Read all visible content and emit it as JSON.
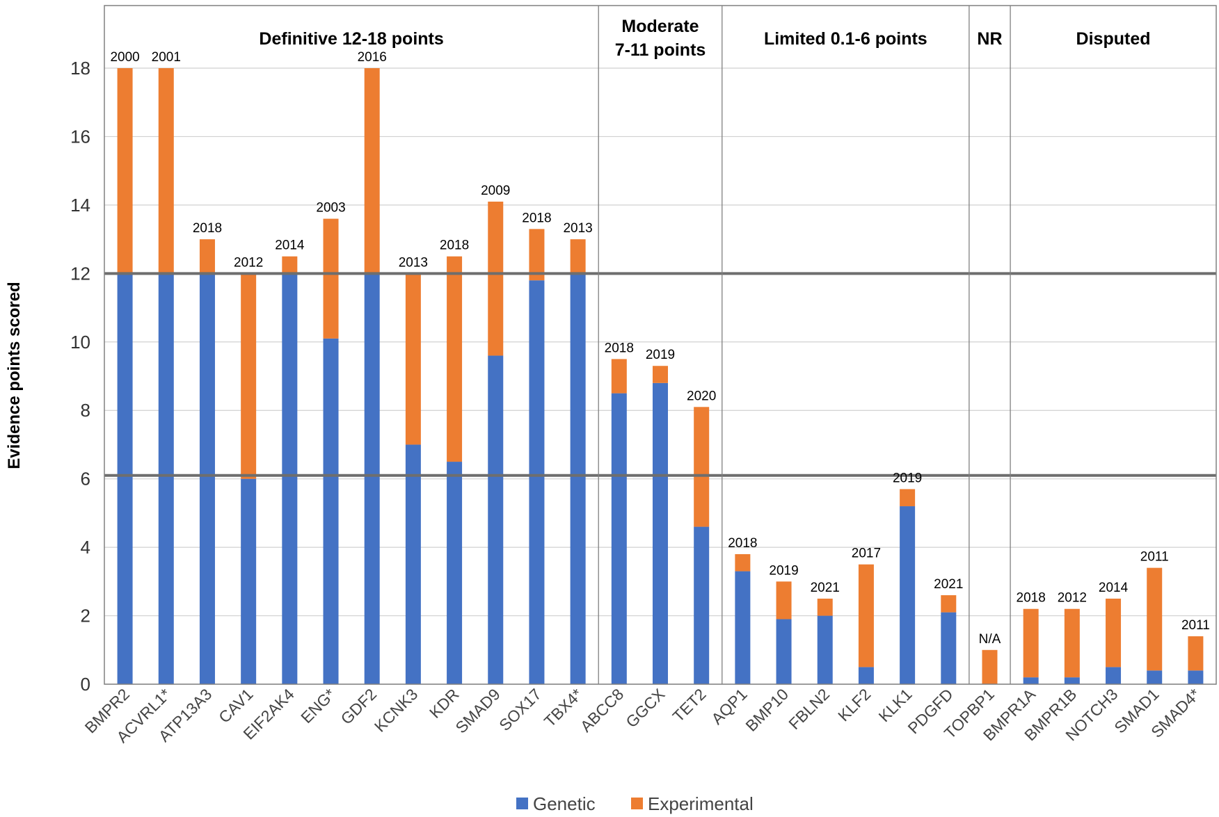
{
  "chart_data": {
    "type": "bar",
    "stacked": true,
    "ylabel": "Evidence points scored",
    "xlabel": "",
    "title": "",
    "ylim": [
      0,
      19
    ],
    "yticks": [
      0,
      2,
      4,
      6,
      8,
      10,
      12,
      14,
      16,
      18
    ],
    "categories": [
      "BMPR2",
      "ACVRL1*",
      "ATP13A3",
      "CAV1",
      "EIF2AK4",
      "ENG*",
      "GDF2",
      "KCNK3",
      "KDR",
      "SMAD9",
      "SOX17",
      "TBX4*",
      "ABCC8",
      "GGCX",
      "TET2",
      "AQP1",
      "BMP10",
      "FBLN2",
      "KLF2",
      "KLK1",
      "PDGFD",
      "TOPBP1",
      "BMPR1A",
      "BMPR1B",
      "NOTCH3",
      "SMAD1",
      "SMAD4*"
    ],
    "series": [
      {
        "name": "Genetic",
        "color": "#4472C4",
        "values": [
          12,
          12,
          12,
          6,
          12,
          10.1,
          12,
          7,
          6.5,
          9.6,
          11.8,
          12,
          8.5,
          8.8,
          4.6,
          3.3,
          1.9,
          2,
          0.5,
          5.2,
          2.1,
          0,
          0.2,
          0.2,
          0.5,
          0.4,
          0.4
        ]
      },
      {
        "name": "Experimental",
        "color": "#ED7D31",
        "values": [
          6,
          6,
          1,
          6,
          0.5,
          3.5,
          6,
          5,
          6,
          4.5,
          1.5,
          1,
          1,
          0.5,
          3.5,
          0.5,
          1.1,
          0.5,
          3,
          0.5,
          0.5,
          1,
          2,
          2,
          2,
          3,
          1
        ]
      }
    ],
    "annotations": [
      "2000",
      "2001",
      "2018",
      "2012",
      "2014",
      "2003",
      "2016",
      "2013",
      "2018",
      "2009",
      "2018",
      "2013",
      "2018",
      "2019",
      "2020",
      "2018",
      "2019",
      "2021",
      "2017",
      "2019",
      "2021",
      "N/A",
      "2018",
      "2012",
      "2014",
      "2011",
      "2011"
    ],
    "groups": [
      {
        "label_lines": [
          "Definitive 12-18 points"
        ],
        "start": 0,
        "end": 11
      },
      {
        "label_lines": [
          "Moderate",
          "7-11 points"
        ],
        "start": 12,
        "end": 14
      },
      {
        "label_lines": [
          "Limited 0.1-6 points"
        ],
        "start": 15,
        "end": 20
      },
      {
        "label_lines": [
          "NR"
        ],
        "start": 21,
        "end": 21
      },
      {
        "label_lines": [
          "Disputed"
        ],
        "start": 22,
        "end": 26
      }
    ],
    "threshold_lines": [
      12,
      6.1
    ],
    "grid": true,
    "legend": {
      "position": "bottom"
    }
  }
}
